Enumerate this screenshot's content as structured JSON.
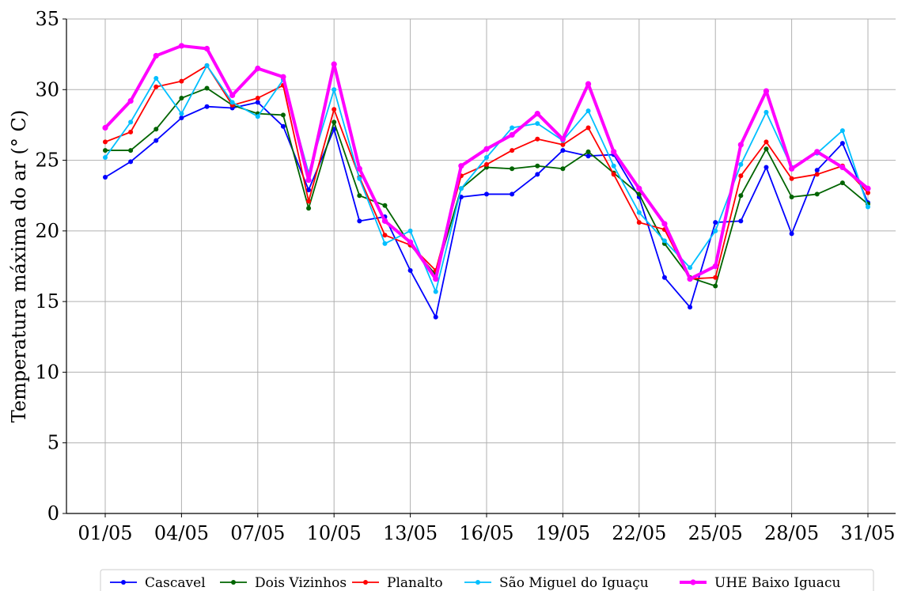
{
  "chart_data": {
    "type": "line",
    "title": "",
    "xlabel": "",
    "ylabel": "Temperatura máxima do ar (° C)",
    "ylim": [
      0,
      35
    ],
    "yticks": [
      0,
      5,
      10,
      15,
      20,
      25,
      30,
      35
    ],
    "x": [
      "01/05",
      "02/05",
      "03/05",
      "04/05",
      "05/05",
      "06/05",
      "07/05",
      "08/05",
      "09/05",
      "10/05",
      "11/05",
      "12/05",
      "13/05",
      "14/05",
      "15/05",
      "16/05",
      "17/05",
      "18/05",
      "19/05",
      "20/05",
      "21/05",
      "22/05",
      "23/05",
      "24/05",
      "25/05",
      "26/05",
      "27/05",
      "28/05",
      "29/05",
      "30/05",
      "31/05"
    ],
    "xtick_labels": [
      "01/05",
      "04/05",
      "07/05",
      "10/05",
      "13/05",
      "16/05",
      "19/05",
      "22/05",
      "25/05",
      "28/05",
      "31/05"
    ],
    "grid": true,
    "legend_position": "bottom",
    "series": [
      {
        "name": "Cascavel",
        "color": "#0000ff",
        "values": [
          23.8,
          24.9,
          26.4,
          28.0,
          28.8,
          28.7,
          29.1,
          27.4,
          22.9,
          27.2,
          20.7,
          21.0,
          17.2,
          13.9,
          22.4,
          22.6,
          22.6,
          24.0,
          25.7,
          25.3,
          25.4,
          22.4,
          16.7,
          14.6,
          20.6,
          20.7,
          24.5,
          19.8,
          24.3,
          26.2,
          22.0
        ]
      },
      {
        "name": "Dois Vizinhos",
        "color": "#006400",
        "values": [
          25.7,
          25.7,
          27.2,
          29.4,
          30.1,
          28.9,
          28.3,
          28.2,
          21.6,
          27.7,
          22.5,
          21.8,
          19.0,
          16.9,
          23.0,
          24.5,
          24.4,
          24.6,
          24.4,
          25.6,
          24.1,
          22.6,
          19.1,
          16.7,
          16.1,
          22.5,
          25.8,
          22.4,
          22.6,
          23.4,
          21.9
        ]
      },
      {
        "name": "Planalto",
        "color": "#ff0000",
        "values": [
          26.3,
          27.0,
          30.2,
          30.6,
          31.7,
          28.9,
          29.4,
          30.3,
          22.1,
          28.6,
          23.8,
          19.7,
          19.0,
          17.2,
          23.9,
          24.7,
          25.7,
          26.5,
          26.1,
          27.3,
          24.0,
          20.6,
          20.1,
          16.6,
          16.7,
          23.9,
          26.3,
          23.7,
          24.0,
          24.6,
          22.7
        ]
      },
      {
        "name": "São Miguel do Iguaçu",
        "color": "#00bfff",
        "values": [
          25.2,
          27.7,
          30.8,
          28.3,
          31.7,
          29.1,
          28.1,
          30.7,
          24.1,
          30.0,
          23.7,
          19.1,
          20.0,
          15.7,
          23.0,
          25.2,
          27.3,
          27.6,
          26.4,
          28.5,
          24.6,
          21.3,
          19.3,
          17.4,
          20.0,
          24.7,
          28.4,
          24.5,
          25.5,
          27.1,
          21.7
        ]
      },
      {
        "name": "UHE Baixo Iguacu",
        "color": "#ff00ff",
        "values": [
          27.3,
          29.2,
          32.4,
          33.1,
          32.9,
          29.6,
          31.5,
          30.9,
          23.6,
          31.8,
          24.4,
          20.7,
          19.2,
          16.6,
          24.6,
          25.8,
          26.8,
          28.3,
          26.5,
          30.4,
          25.6,
          23.0,
          20.5,
          16.6,
          17.5,
          26.1,
          29.9,
          24.4,
          25.6,
          24.5,
          23.0
        ]
      }
    ]
  }
}
